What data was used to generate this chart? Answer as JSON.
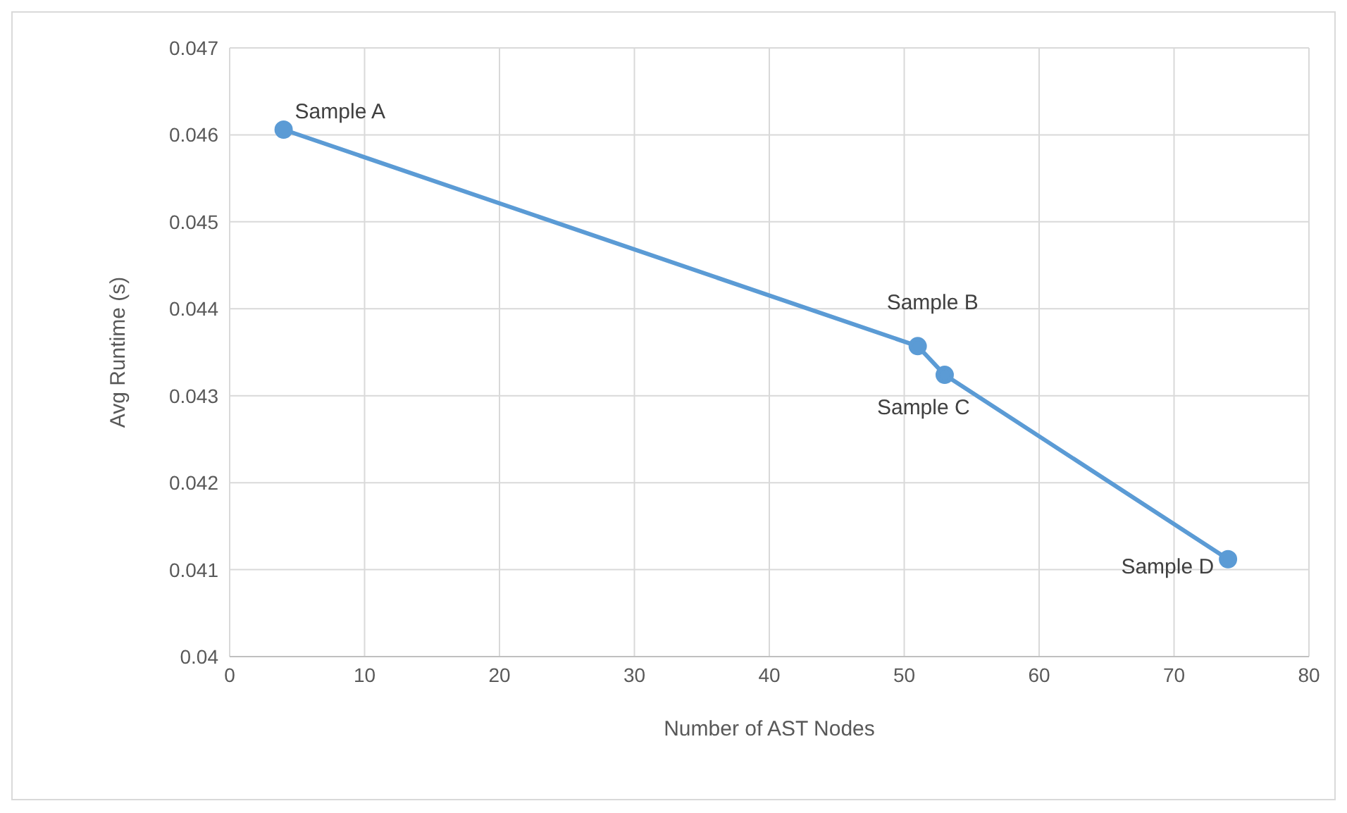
{
  "chart_data": {
    "type": "line",
    "xlabel": "Number  of AST Nodes",
    "ylabel": "Avg Runtime (s)",
    "x": [
      4,
      51,
      53,
      74
    ],
    "series": [
      {
        "color": "#5b9bd5",
        "values": [
          0.04606,
          0.04357,
          0.04324,
          0.04112
        ]
      }
    ],
    "xlim": [
      0,
      80
    ],
    "xticks": [
      0,
      10,
      20,
      30,
      40,
      50,
      60,
      70,
      80
    ],
    "ylim": [
      0.04,
      0.047
    ],
    "yticks": [
      0.04,
      0.041,
      0.042,
      0.043,
      0.044,
      0.045,
      0.046,
      0.047
    ],
    "grid": true,
    "marker": "circle",
    "line_style": "solid",
    "legend": false,
    "annotations": [
      {
        "text": "Sample A",
        "x": 4,
        "y": 0.04606
      },
      {
        "text": "Sample B",
        "x": 51,
        "y": 0.04357
      },
      {
        "text": "Sample C",
        "x": 53,
        "y": 0.04324
      },
      {
        "text": "Sample D",
        "x": 74,
        "y": 0.04112
      }
    ]
  }
}
